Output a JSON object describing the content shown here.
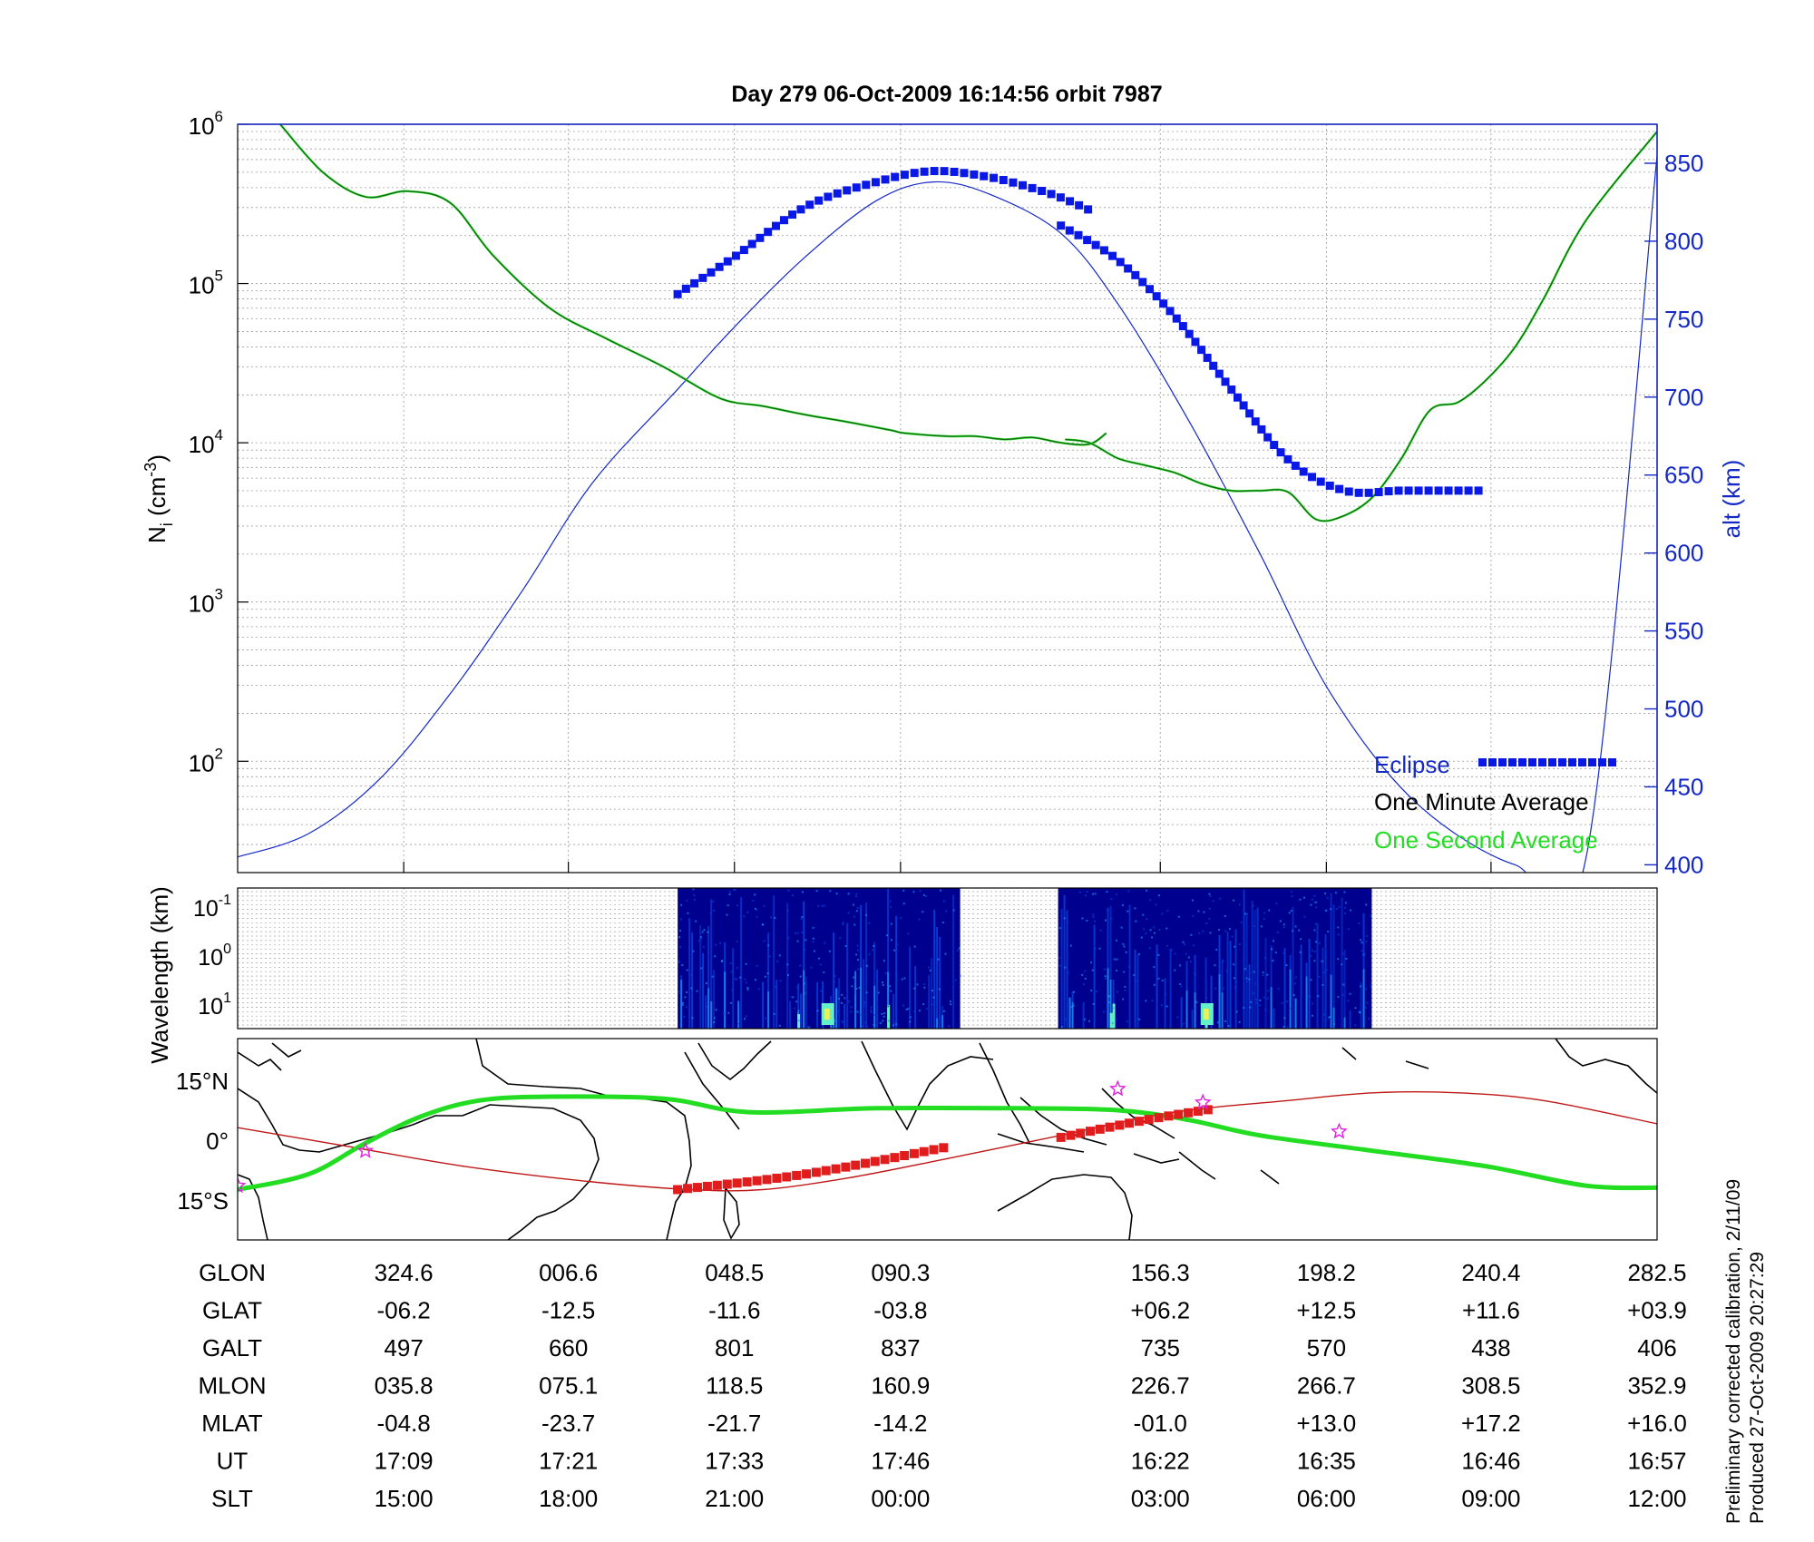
{
  "chart_data": [
    {
      "type": "line",
      "title": "Day 279  06-Oct-2009 16:14:56   orbit 7987",
      "ylabel_left": "N",
      "ylabel_left_sub": "i",
      "ylabel_left_unit_pre": " (cm",
      "ylabel_left_unit_sup": "-3",
      "ylabel_left_unit_post": ")",
      "ylabel_right": "alt (km)",
      "yscale_left": "log",
      "ylim_left": [
        20,
        1000000
      ],
      "ylim_right": [
        395,
        875
      ],
      "left_ticks": [
        {
          "base": "10",
          "exp": "2",
          "value": 100
        },
        {
          "base": "10",
          "exp": "3",
          "value": 1000
        },
        {
          "base": "10",
          "exp": "4",
          "value": 10000
        },
        {
          "base": "10",
          "exp": "5",
          "value": 100000
        },
        {
          "base": "10",
          "exp": "6",
          "value": 1000000
        }
      ],
      "right_ticks": [
        "400",
        "450",
        "500",
        "550",
        "600",
        "650",
        "700",
        "750",
        "800",
        "850"
      ],
      "grid": true,
      "legend": [
        "Eclipse",
        "One Minute Average",
        "One Second Average"
      ],
      "legend_position": "bottom-right",
      "colors": {
        "eclipse": "#0a18e6",
        "minute": "#000000",
        "second": "#22dd22",
        "altitude": "#1428c8"
      },
      "series": [
        {
          "name": "alt (km)",
          "axis": "right",
          "x": [
            0,
            0.05,
            0.1,
            0.15,
            0.2,
            0.25,
            0.31,
            0.35,
            0.4,
            0.45,
            0.49,
            0.53,
            0.58,
            0.62,
            0.67,
            0.72,
            0.77,
            0.83,
            0.9,
            0.95,
            1
          ],
          "y": [
            405,
            420,
            455,
            510,
            575,
            645,
            705,
            745,
            790,
            826,
            838,
            830,
            805,
            760,
            685,
            600,
            510,
            440,
            400,
            405,
            855
          ]
        },
        {
          "name": "One Minute Average",
          "axis": "left",
          "segments": [
            {
              "x": [
                0.03,
                0.06,
                0.09,
                0.12,
                0.15,
                0.18,
                0.22,
                0.26,
                0.3,
                0.34,
                0.37,
                0.4,
                0.43,
                0.46,
                0.47,
                0.5,
                0.52,
                0.54,
                0.56,
                0.58,
                0.6,
                0.612
              ],
              "y": [
                1000000,
                500000,
                350000,
                380000,
                320000,
                150000,
                70000,
                45000,
                30000,
                19000,
                17000,
                15000,
                13500,
                12000,
                11500,
                11000,
                11000,
                10500,
                10800,
                10000,
                9800,
                11500
              ]
            },
            {
              "x": [
                0.583,
                0.6,
                0.62,
                0.64,
                0.66,
                0.68,
                0.7,
                0.72,
                0.74,
                0.76,
                0.78,
                0.8,
                0.82,
                0.84,
                0.86,
                0.88,
                0.9,
                0.92,
                0.95,
                1
              ],
              "y": [
                10500,
                10000,
                8000,
                7200,
                6500,
                5500,
                5000,
                5000,
                4900,
                3300,
                3500,
                4600,
                8000,
                16000,
                18000,
                25000,
                40000,
                80000,
                250000,
                900000
              ]
            }
          ]
        },
        {
          "name": "Eclipse",
          "axis": "right",
          "style": "marker",
          "segments": [
            {
              "x": [
                0.31,
                0.35,
                0.4,
                0.45,
                0.49,
                0.53,
                0.56,
                0.58,
                0.6
              ],
              "y": [
                766,
                790,
                822,
                838,
                845,
                841,
                834,
                828,
                820
              ]
            },
            {
              "x": [
                0.58,
                0.62,
                0.66,
                0.7,
                0.74,
                0.78,
                0.82,
                0.86,
                0.88
              ],
              "y": [
                810,
                788,
                752,
                705,
                660,
                640,
                640,
                640,
                640
              ]
            }
          ]
        }
      ]
    },
    {
      "type": "heatmap",
      "ylabel": "Wavelength (km)",
      "y_ticks": [
        {
          "base": "10",
          "exp": "-1"
        },
        {
          "base": "10",
          "exp": "0"
        },
        {
          "base": "10",
          "exp": "1"
        }
      ],
      "blocks_x": [
        [
          0.31,
          0.509
        ],
        [
          0.578,
          0.799
        ]
      ],
      "colormap": [
        "#00008f",
        "#0a3cd6",
        "#1e8cf0",
        "#64f0c8",
        "#f0f050"
      ]
    },
    {
      "type": "map",
      "lat_labels": [
        "15°N",
        "0°",
        "15°S"
      ],
      "lat_values": [
        15,
        0,
        -15
      ],
      "ylim": [
        -25,
        27
      ],
      "track_green": {
        "color": "#22dd22",
        "x": [
          0,
          0.05,
          0.09,
          0.13,
          0.17,
          0.22,
          0.3,
          0.36,
          0.45,
          0.55,
          0.62,
          0.67,
          0.72,
          0.8,
          0.88,
          0.95,
          1
        ],
        "y": [
          -12,
          -8,
          0,
          7,
          11,
          12,
          11.5,
          8,
          9,
          9,
          8.5,
          6,
          2,
          -2,
          -6,
          -11,
          -11.5
        ]
      },
      "track_red": {
        "color": "#c01818",
        "x": [
          0,
          0.08,
          0.16,
          0.25,
          0.32,
          0.37,
          0.43,
          0.5,
          0.58,
          0.66,
          0.74,
          0.8,
          0.86,
          0.92,
          1
        ],
        "y": [
          4,
          -1,
          -6,
          -10,
          -12,
          -12,
          -9,
          -4,
          2,
          8,
          11,
          13,
          13,
          11,
          5
        ]
      },
      "eclipse_segments": [
        {
          "x": [
            0.31,
            0.4,
            0.5
          ],
          "y": [
            -12,
            -8,
            -1
          ]
        },
        {
          "x": [
            0.58,
            0.64,
            0.69
          ],
          "y": [
            1.5,
            6,
            9
          ]
        }
      ],
      "stars": [
        [
          0,
          -11
        ],
        [
          0.09,
          -2
        ],
        [
          0.62,
          14
        ],
        [
          0.68,
          10.5
        ],
        [
          0.776,
          3
        ]
      ],
      "star_color": "#e020e0"
    }
  ],
  "table": {
    "x_fracs": [
      0.117,
      0.233,
      0.35,
      0.467,
      0.65,
      0.767,
      0.883,
      1
    ],
    "rows": [
      {
        "label": "GLON",
        "values": [
          "324.6",
          "006.6",
          "048.5",
          "090.3",
          "156.3",
          "198.2",
          "240.4",
          "282.5"
        ]
      },
      {
        "label": "GLAT",
        "values": [
          "-06.2",
          "-12.5",
          "-11.6",
          "-03.8",
          "+06.2",
          "+12.5",
          "+11.6",
          "+03.9"
        ]
      },
      {
        "label": "GALT",
        "values": [
          "497",
          "660",
          "801",
          "837",
          "735",
          "570",
          "438",
          "406"
        ]
      },
      {
        "label": "MLON",
        "values": [
          "035.8",
          "075.1",
          "118.5",
          "160.9",
          "226.7",
          "266.7",
          "308.5",
          "352.9"
        ]
      },
      {
        "label": "MLAT",
        "values": [
          "-04.8",
          "-23.7",
          "-21.7",
          "-14.2",
          "-01.0",
          "+13.0",
          "+17.2",
          "+16.0"
        ]
      },
      {
        "label": "UT",
        "values": [
          "17:09",
          "17:21",
          "17:33",
          "17:46",
          "16:22",
          "16:35",
          "16:46",
          "16:57"
        ]
      },
      {
        "label": "SLT",
        "values": [
          "15:00",
          "18:00",
          "21:00",
          "00:00",
          "03:00",
          "06:00",
          "09:00",
          "12:00"
        ]
      }
    ]
  },
  "footer": {
    "line1": "Preliminary corrected calibration, 2/11/09",
    "line2": "Produced 27-Oct-2009 20:27:29"
  }
}
